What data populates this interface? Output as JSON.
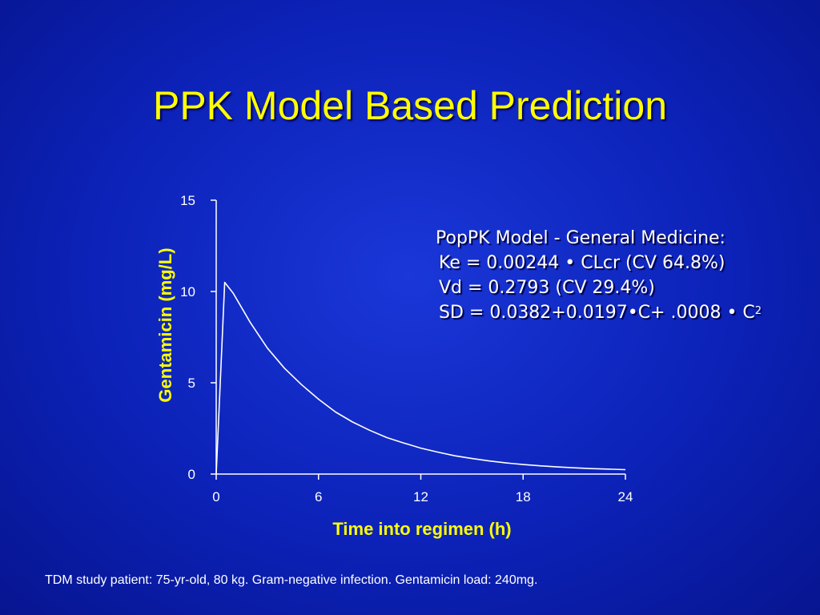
{
  "slide": {
    "title": "PPK Model Based Prediction",
    "footnote": "TDM study patient: 75-yr-old, 80 kg. Gram-negative infection. Gentamicin load: 240mg."
  },
  "model_box": {
    "line1": "PopPK Model - General Medicine:",
    "line2": "Ke = 0.00244 • CLcr (CV 64.8%)",
    "line3": "Vd = 0.2793 (CV 29.4%)",
    "line4_main": "SD = 0.0382+0.0197•C+ .0008 • C",
    "line4_sup": "2"
  },
  "colors": {
    "background": "#0c22b8",
    "title": "#ffff00",
    "axis_title": "#ffff00",
    "curve": "#ffffff",
    "axis": "#ffffff"
  },
  "chart_data": {
    "type": "line",
    "xlabel": "Time into regimen (h)",
    "ylabel": "Gentamicin (mg/L)",
    "xlim": [
      0,
      24
    ],
    "ylim": [
      0,
      15
    ],
    "xticks": [
      0,
      6,
      12,
      18,
      24
    ],
    "yticks": [
      0,
      5,
      10,
      15
    ],
    "grid": false,
    "series": [
      {
        "x": [
          0,
          0.5,
          1,
          2,
          3,
          4,
          5,
          6,
          7,
          8,
          9,
          10,
          11,
          12,
          13,
          14,
          15,
          16,
          17,
          18,
          19,
          20,
          21,
          22,
          23,
          24
        ],
        "y": [
          0,
          10.5,
          9.9,
          8.3,
          6.9,
          5.8,
          4.9,
          4.1,
          3.4,
          2.85,
          2.4,
          2.0,
          1.7,
          1.42,
          1.2,
          1.0,
          0.85,
          0.72,
          0.61,
          0.52,
          0.45,
          0.39,
          0.34,
          0.3,
          0.27,
          0.24
        ]
      }
    ]
  }
}
